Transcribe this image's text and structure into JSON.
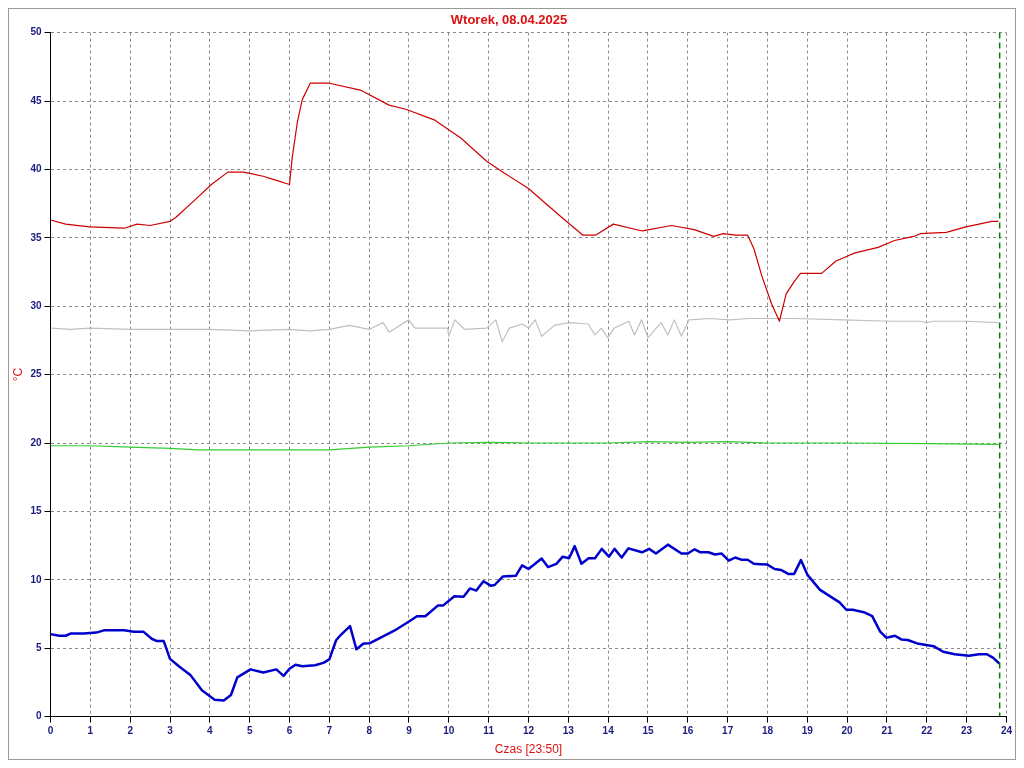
{
  "chart_data": {
    "type": "line",
    "title": "Wtorek, 08.04.2025",
    "xlabel": "Czas [23:50]",
    "ylabel": "°C",
    "xlim": [
      0,
      24
    ],
    "ylim": [
      0,
      50
    ],
    "xticks": [
      0,
      1,
      2,
      3,
      4,
      5,
      6,
      7,
      8,
      9,
      10,
      11,
      12,
      13,
      14,
      15,
      16,
      17,
      18,
      19,
      20,
      21,
      22,
      23,
      24
    ],
    "yticks": [
      0,
      5,
      10,
      15,
      20,
      25,
      30,
      35,
      40,
      45,
      50
    ],
    "grid": true,
    "legend": false,
    "marker": "none",
    "line_style": "solid",
    "ref_lines": [
      {
        "axis": "x",
        "value": 23.83,
        "color": "#008000",
        "line_style": "dashed"
      }
    ],
    "series": [
      {
        "color": "#cc0000",
        "x": [
          0,
          0.38,
          0.98,
          1.85,
          2.17,
          2.5,
          3.0,
          3.15,
          3.6,
          4.04,
          4.45,
          4.85,
          5.34,
          5.67,
          6.0,
          6.07,
          6.2,
          6.32,
          6.52,
          7.0,
          7.78,
          8.5,
          8.92,
          9.65,
          10.3,
          10.95,
          11.36,
          12.0,
          12.75,
          13.36,
          13.69,
          14.13,
          14.86,
          15.59,
          16.16,
          16.65,
          16.89,
          17.21,
          17.5,
          17.66,
          17.86,
          18.1,
          18.3,
          18.47,
          18.67,
          18.83,
          19.36,
          19.72,
          20.2,
          20.78,
          21.19,
          21.67,
          21.84,
          22.49,
          22.98,
          23.31,
          23.63,
          23.8
        ],
        "values": [
          36.3,
          36.0,
          35.8,
          35.7,
          36.0,
          35.9,
          36.2,
          36.5,
          37.7,
          38.9,
          39.8,
          39.8,
          39.5,
          39.2,
          38.9,
          40.9,
          43.5,
          45.1,
          46.3,
          46.3,
          45.8,
          44.7,
          44.4,
          43.6,
          42.3,
          40.6,
          39.8,
          38.6,
          36.7,
          35.2,
          35.2,
          36.0,
          35.5,
          35.9,
          35.6,
          35.1,
          35.3,
          35.2,
          35.2,
          34.2,
          32.2,
          30.2,
          28.9,
          30.9,
          31.8,
          32.4,
          32.4,
          33.3,
          33.9,
          34.3,
          34.8,
          35.1,
          35.3,
          35.4,
          35.8,
          36.0,
          36.2,
          36.2
        ]
      },
      {
        "color": "#c0c0c0",
        "x": [
          0,
          0.5,
          1,
          2,
          3,
          4,
          5,
          6,
          6.5,
          7,
          7.5,
          8,
          8.35,
          8.5,
          8.99,
          9.15,
          9.97,
          10.0,
          10.15,
          10.4,
          10.95,
          11.18,
          11.34,
          11.52,
          11.84,
          12.0,
          12.17,
          12.33,
          12.65,
          13.02,
          13.5,
          13.67,
          13.83,
          13.99,
          14.15,
          14.52,
          14.66,
          14.84,
          15.0,
          15.33,
          15.5,
          15.66,
          15.84,
          16.03,
          16.56,
          17.05,
          17.54,
          18.67,
          19.9,
          21.1,
          21.84,
          22.0,
          22.17,
          22.98,
          23.8
        ],
        "values": [
          28.4,
          28.3,
          28.4,
          28.3,
          28.3,
          28.3,
          28.2,
          28.3,
          28.2,
          28.3,
          28.6,
          28.3,
          28.8,
          28.1,
          29.0,
          28.4,
          28.4,
          27.8,
          29.0,
          28.3,
          28.4,
          29.0,
          27.4,
          28.4,
          28.7,
          28.4,
          29.0,
          27.8,
          28.6,
          28.8,
          28.7,
          27.9,
          28.4,
          27.7,
          28.4,
          28.9,
          27.9,
          29.0,
          27.7,
          28.8,
          27.9,
          29.0,
          27.8,
          29.0,
          29.1,
          29.0,
          29.1,
          29.1,
          29.0,
          28.9,
          28.9,
          28.8,
          28.9,
          28.9,
          28.8
        ]
      },
      {
        "color": "#33cc33",
        "x": [
          0,
          1,
          2,
          3,
          3.7,
          5,
          6,
          7,
          8,
          9,
          10,
          11,
          12,
          13,
          14,
          15,
          16,
          17,
          18,
          20,
          22,
          23.8
        ],
        "values": [
          19.8,
          19.8,
          19.7,
          19.6,
          19.5,
          19.5,
          19.5,
          19.5,
          19.7,
          19.8,
          20.0,
          20.05,
          20.0,
          20.0,
          20.0,
          20.1,
          20.05,
          20.1,
          20.0,
          20.0,
          19.95,
          19.9
        ]
      },
      {
        "color": "#0000cc",
        "x": [
          0,
          0.22,
          0.38,
          0.5,
          0.83,
          1.15,
          1.36,
          1.85,
          2.09,
          2.33,
          2.54,
          2.66,
          2.84,
          3.0,
          3.23,
          3.51,
          3.8,
          4.12,
          4.35,
          4.53,
          4.69,
          5.02,
          5.34,
          5.67,
          5.85,
          6.0,
          6.15,
          6.32,
          6.64,
          6.85,
          7.0,
          7.17,
          7.29,
          7.52,
          7.68,
          7.86,
          8.02,
          8.35,
          8.63,
          9.0,
          9.2,
          9.41,
          9.73,
          9.86,
          10.14,
          10.37,
          10.53,
          10.69,
          10.87,
          11.05,
          11.15,
          11.36,
          11.68,
          11.84,
          12.0,
          12.33,
          12.49,
          12.7,
          12.86,
          13.02,
          13.16,
          13.33,
          13.51,
          13.67,
          13.84,
          14.02,
          14.16,
          14.34,
          14.51,
          14.85,
          15.03,
          15.2,
          15.5,
          15.84,
          16.0,
          16.17,
          16.32,
          16.52,
          16.68,
          16.85,
          17.03,
          17.19,
          17.34,
          17.5,
          17.66,
          18.0,
          18.18,
          18.34,
          18.52,
          18.67,
          18.84,
          19.0,
          19.32,
          19.81,
          19.98,
          20.14,
          20.42,
          20.63,
          20.83,
          20.99,
          21.2,
          21.36,
          21.52,
          21.76,
          22.17,
          22.41,
          22.7,
          23.06,
          23.31,
          23.51,
          23.67,
          23.82
        ],
        "values": [
          6.03,
          5.91,
          5.91,
          6.07,
          6.07,
          6.14,
          6.32,
          6.32,
          6.21,
          6.21,
          5.69,
          5.53,
          5.53,
          4.22,
          3.66,
          3.05,
          1.92,
          1.24,
          1.17,
          1.58,
          2.87,
          3.45,
          3.23,
          3.45,
          2.98,
          3.5,
          3.79,
          3.68,
          3.75,
          3.93,
          4.18,
          5.58,
          5.98,
          6.61,
          4.92,
          5.35,
          5.37,
          5.87,
          6.28,
          6.95,
          7.34,
          7.34,
          8.13,
          8.13,
          8.8,
          8.76,
          9.37,
          9.21,
          9.89,
          9.57,
          9.62,
          10.25,
          10.29,
          11.06,
          10.79,
          11.56,
          10.93,
          11.17,
          11.69,
          11.58,
          12.46,
          11.17,
          11.58,
          11.58,
          12.26,
          11.69,
          12.26,
          11.63,
          12.3,
          12.01,
          12.26,
          11.92,
          12.57,
          11.92,
          11.92,
          12.23,
          12.01,
          12.01,
          11.85,
          11.92,
          11.4,
          11.63,
          11.47,
          11.47,
          11.17,
          11.11,
          10.79,
          10.72,
          10.43,
          10.43,
          11.44,
          10.38,
          9.26,
          8.35,
          7.81,
          7.81,
          7.63,
          7.34,
          6.21,
          5.76,
          5.91,
          5.64,
          5.6,
          5.35,
          5.15,
          4.74,
          4.56,
          4.45,
          4.56,
          4.56,
          4.29,
          3.88
        ]
      }
    ]
  }
}
